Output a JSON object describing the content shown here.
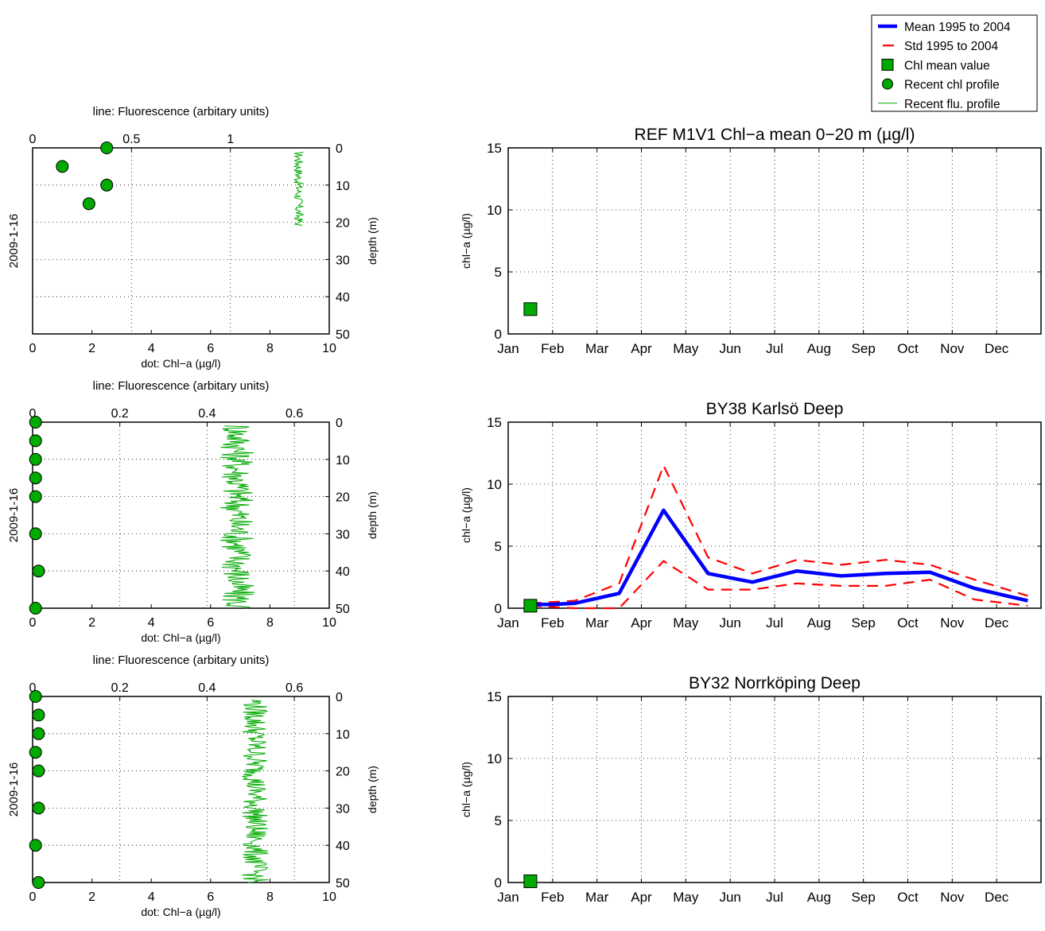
{
  "legend": {
    "position": "top-right",
    "entries": [
      {
        "label": "Mean 1995 to 2004",
        "style": "thick-line",
        "color": "#0000ff"
      },
      {
        "label": "Std 1995 to 2004",
        "style": "dashed-line",
        "color": "#ff0000"
      },
      {
        "label": "Chl mean value",
        "style": "square-marker",
        "color": "#00aa00"
      },
      {
        "label": "Recent chl profile",
        "style": "circle-marker",
        "color": "#00aa00"
      },
      {
        "label": "Recent flu. profile",
        "style": "thin-line",
        "color": "#00aa00"
      }
    ]
  },
  "colors": {
    "mean": "#0000ff",
    "std": "#ff0000",
    "chl": "#00aa00",
    "flu": "#00aa00",
    "axis": "#000000",
    "grid": "#000000"
  },
  "chart_data": [
    {
      "type": "scatter",
      "ylabel_left": "2009-1-16",
      "xlabel_bottom": "dot: Chl−a (µg/l)",
      "xlabel_top": "line: Fluorescence (arbitary units)",
      "ylabel_right": "depth (m)",
      "xlim": [
        0,
        10
      ],
      "xticks": [
        "0",
        "2",
        "4",
        "6",
        "8",
        "10"
      ],
      "top_xlim": [
        0,
        1.5
      ],
      "top_xticks": [
        {
          "v": 0,
          "label": "0"
        },
        {
          "v": 0.5,
          "label": "0.5"
        },
        {
          "v": 1,
          "label": "1"
        }
      ],
      "ylim": [
        0,
        50
      ],
      "yticks": [
        "0",
        "10",
        "20",
        "30",
        "40",
        "50"
      ],
      "grid": true,
      "chl_points": [
        {
          "chl": 2.5,
          "depth": 0
        },
        {
          "chl": 1.0,
          "depth": 5
        },
        {
          "chl": 2.5,
          "depth": 10
        },
        {
          "chl": 1.9,
          "depth": 15
        }
      ],
      "fluorescence": {
        "min": 1.32,
        "max": 1.37,
        "depth_from": 1,
        "depth_to": 21
      }
    },
    {
      "type": "scatter",
      "ylabel_left": "2009-1-16",
      "xlabel_bottom": "dot: Chl−a (µg/l)",
      "xlabel_top": "line: Fluorescence (arbitary units)",
      "ylabel_right": "depth (m)",
      "xlim": [
        0,
        10
      ],
      "xticks": [
        "0",
        "2",
        "4",
        "6",
        "8",
        "10"
      ],
      "top_xlim": [
        0,
        0.68
      ],
      "top_xticks": [
        {
          "v": 0,
          "label": "0"
        },
        {
          "v": 0.2,
          "label": "0.2"
        },
        {
          "v": 0.4,
          "label": "0.4"
        },
        {
          "v": 0.6,
          "label": "0.6"
        }
      ],
      "ylim": [
        0,
        50
      ],
      "yticks": [
        "0",
        "10",
        "20",
        "30",
        "40",
        "50"
      ],
      "grid": true,
      "chl_points": [
        {
          "chl": 0.1,
          "depth": 0
        },
        {
          "chl": 0.1,
          "depth": 5
        },
        {
          "chl": 0.1,
          "depth": 10
        },
        {
          "chl": 0.1,
          "depth": 15
        },
        {
          "chl": 0.1,
          "depth": 20
        },
        {
          "chl": 0.1,
          "depth": 30
        },
        {
          "chl": 0.2,
          "depth": 40
        },
        {
          "chl": 0.1,
          "depth": 50
        }
      ],
      "fluorescence": {
        "min": 0.43,
        "max": 0.51,
        "depth_from": 1,
        "depth_to": 50
      }
    },
    {
      "type": "scatter",
      "ylabel_left": "2009-1-16",
      "xlabel_bottom": "dot: Chl−a (µg/l)",
      "xlabel_top": "line: Fluorescence (arbitary units)",
      "ylabel_right": "depth (m)",
      "xlim": [
        0,
        10
      ],
      "xticks": [
        "0",
        "2",
        "4",
        "6",
        "8",
        "10"
      ],
      "top_xlim": [
        0,
        0.68
      ],
      "top_xticks": [
        {
          "v": 0,
          "label": "0"
        },
        {
          "v": 0.2,
          "label": "0.2"
        },
        {
          "v": 0.4,
          "label": "0.4"
        },
        {
          "v": 0.6,
          "label": "0.6"
        }
      ],
      "ylim": [
        0,
        50
      ],
      "yticks": [
        "0",
        "10",
        "20",
        "30",
        "40",
        "50"
      ],
      "grid": true,
      "chl_points": [
        {
          "chl": 0.1,
          "depth": 0
        },
        {
          "chl": 0.2,
          "depth": 5
        },
        {
          "chl": 0.2,
          "depth": 10
        },
        {
          "chl": 0.1,
          "depth": 15
        },
        {
          "chl": 0.2,
          "depth": 20
        },
        {
          "chl": 0.2,
          "depth": 30
        },
        {
          "chl": 0.1,
          "depth": 40
        },
        {
          "chl": 0.2,
          "depth": 50
        }
      ],
      "fluorescence": {
        "min": 0.48,
        "max": 0.54,
        "depth_from": 1,
        "depth_to": 50
      }
    },
    {
      "type": "line",
      "title": "REF M1V1 Chl−a mean 0−20 m (µg/l)",
      "ylabel": "chl−a (µg/l)",
      "categories": [
        "Jan",
        "Feb",
        "Mar",
        "Apr",
        "May",
        "Jun",
        "Jul",
        "Aug",
        "Sep",
        "Oct",
        "Nov",
        "Dec"
      ],
      "xlim": [
        0,
        12
      ],
      "ylim": [
        0,
        15
      ],
      "yticks": [
        "0",
        "5",
        "10",
        "15"
      ],
      "grid": true,
      "mean": [],
      "std_upper": [],
      "std_lower": [],
      "chl_mean": [
        {
          "month": 0.5,
          "value": 2.0
        }
      ]
    },
    {
      "type": "line",
      "title": "BY38 Karlsö Deep",
      "ylabel": "chl−a (µg/l)",
      "categories": [
        "Jan",
        "Feb",
        "Mar",
        "Apr",
        "May",
        "Jun",
        "Jul",
        "Aug",
        "Sep",
        "Oct",
        "Nov",
        "Dec"
      ],
      "xlim": [
        0,
        12
      ],
      "ylim": [
        0,
        15
      ],
      "yticks": [
        "0",
        "5",
        "10",
        "15"
      ],
      "grid": true,
      "mean": [
        [
          0.5,
          0.3
        ],
        [
          1.0,
          0.3
        ],
        [
          1.5,
          0.4
        ],
        [
          2.5,
          1.2
        ],
        [
          3.5,
          7.9
        ],
        [
          4.5,
          2.8
        ],
        [
          5.5,
          2.1
        ],
        [
          6.5,
          3.0
        ],
        [
          7.5,
          2.6
        ],
        [
          8.5,
          2.8
        ],
        [
          9.5,
          2.9
        ],
        [
          10.5,
          1.6
        ],
        [
          11.7,
          0.6
        ]
      ],
      "std_upper": [
        [
          0.5,
          0.4
        ],
        [
          1.0,
          0.5
        ],
        [
          1.5,
          0.6
        ],
        [
          2.5,
          2.0
        ],
        [
          3.5,
          11.5
        ],
        [
          4.5,
          4.1
        ],
        [
          5.5,
          2.8
        ],
        [
          6.5,
          3.9
        ],
        [
          7.5,
          3.5
        ],
        [
          8.5,
          3.9
        ],
        [
          9.5,
          3.5
        ],
        [
          10.5,
          2.3
        ],
        [
          11.7,
          1.0
        ]
      ],
      "std_lower": [
        [
          0.5,
          0.2
        ],
        [
          1.0,
          0.1
        ],
        [
          1.5,
          0.0
        ],
        [
          2.5,
          0.0
        ],
        [
          3.5,
          3.8
        ],
        [
          4.5,
          1.5
        ],
        [
          5.5,
          1.5
        ],
        [
          6.5,
          2.0
        ],
        [
          7.5,
          1.8
        ],
        [
          8.5,
          1.8
        ],
        [
          9.5,
          2.3
        ],
        [
          10.5,
          0.7
        ],
        [
          11.7,
          0.2
        ]
      ],
      "chl_mean": [
        {
          "month": 0.5,
          "value": 0.2
        }
      ]
    },
    {
      "type": "line",
      "title": "BY32 Norrköping Deep",
      "ylabel": "chl−a (µg/l)",
      "categories": [
        "Jan",
        "Feb",
        "Mar",
        "Apr",
        "May",
        "Jun",
        "Jul",
        "Aug",
        "Sep",
        "Oct",
        "Nov",
        "Dec"
      ],
      "xlim": [
        0,
        12
      ],
      "ylim": [
        0,
        15
      ],
      "yticks": [
        "0",
        "5",
        "10",
        "15"
      ],
      "grid": true,
      "mean": [],
      "std_upper": [],
      "std_lower": [],
      "chl_mean": [
        {
          "month": 0.5,
          "value": 0.1
        }
      ]
    }
  ]
}
